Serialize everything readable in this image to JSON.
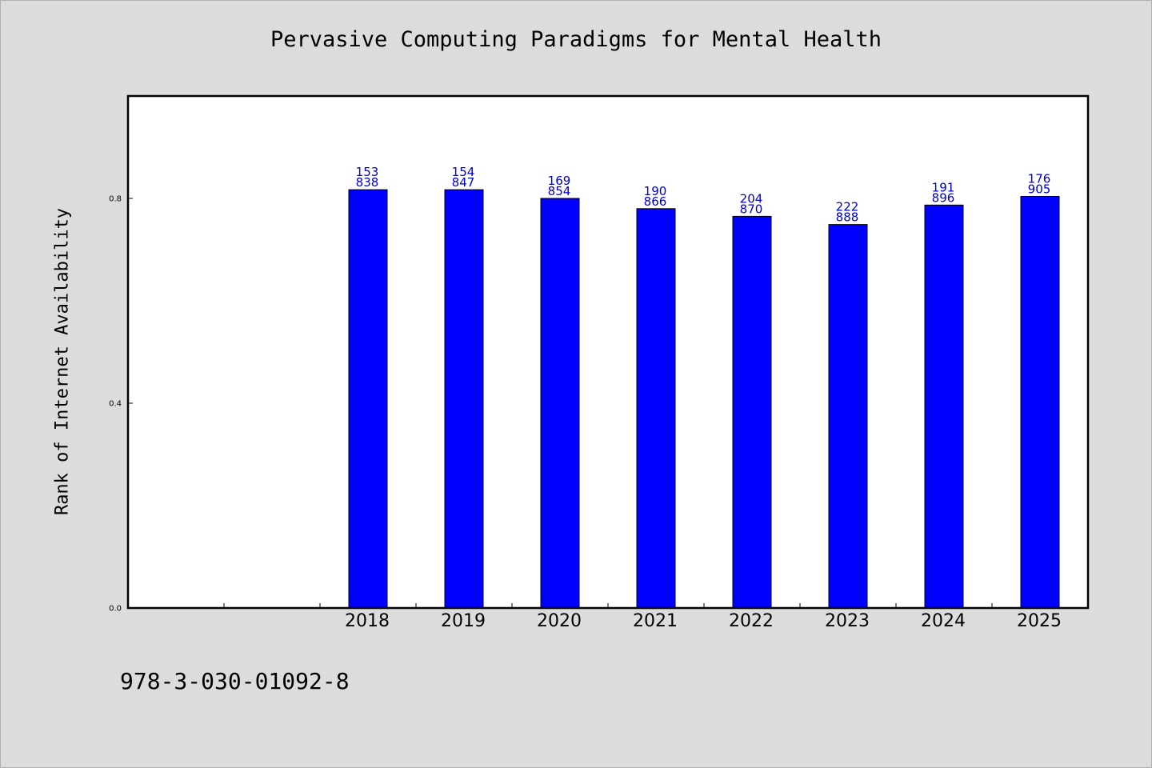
{
  "chart_data": {
    "type": "bar",
    "title": "Pervasive Computing Paradigms for Mental Health",
    "xlabel": "",
    "ylabel": "Rank of Internet Availability",
    "categories": [
      "2018",
      "2019",
      "2020",
      "2021",
      "2022",
      "2023",
      "2024",
      "2025"
    ],
    "values": [
      0.817,
      0.817,
      0.8,
      0.78,
      0.765,
      0.749,
      0.787,
      0.804
    ],
    "bar_labels": [
      [
        "153",
        "838"
      ],
      [
        "154",
        "847"
      ],
      [
        "169",
        "854"
      ],
      [
        "190",
        "866"
      ],
      [
        "204",
        "870"
      ],
      [
        "222",
        "888"
      ],
      [
        "191",
        "896"
      ],
      [
        "176",
        "905"
      ]
    ],
    "ylim": [
      0.0,
      1.0
    ],
    "yticks": [
      {
        "value": 0.0,
        "label": "0.0"
      },
      {
        "value": 0.4,
        "label": "0.4"
      },
      {
        "value": 0.8,
        "label": "0.8"
      }
    ],
    "x_slots": 10,
    "first_category_slot": 2,
    "grid": false,
    "bar_color": "#0000ff",
    "label_color": "#0000cc",
    "plot_background": "#ffffff",
    "page_background": "#dcdcdc"
  },
  "footer": {
    "isbn": "978-3-030-01092-8"
  }
}
